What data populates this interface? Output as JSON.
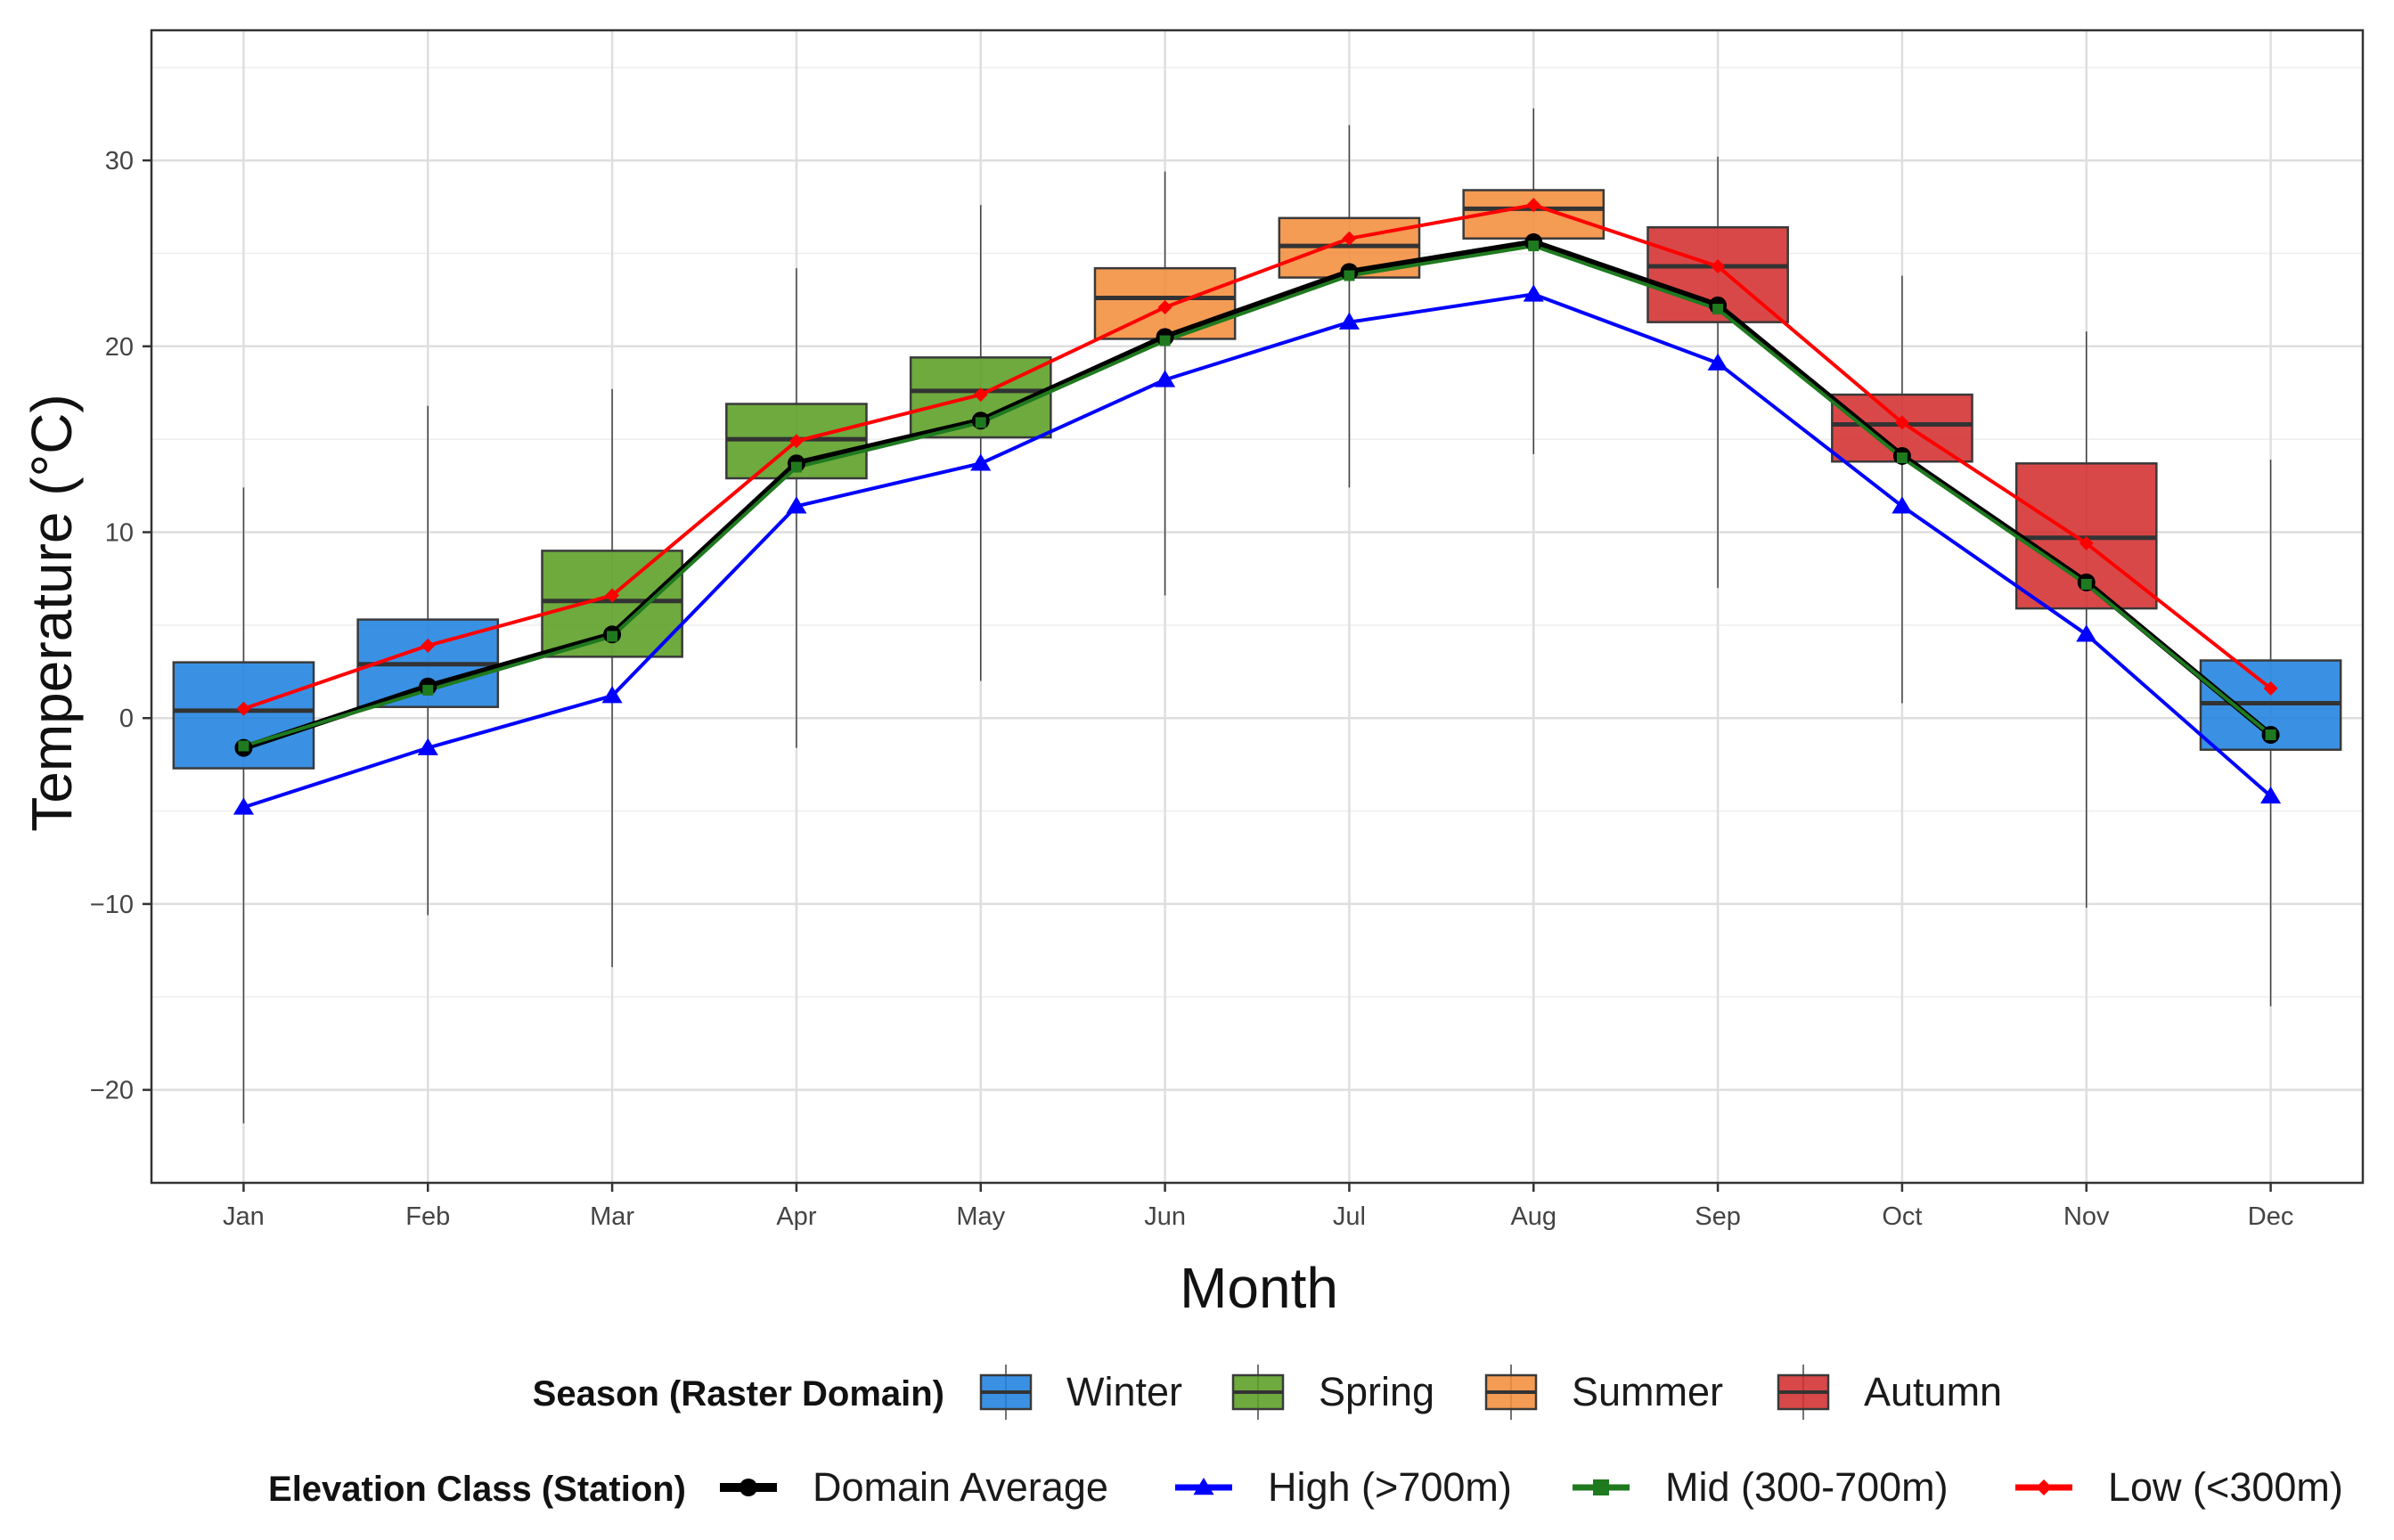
{
  "chart_data": {
    "type": "box+line",
    "xlabel": "Month",
    "ylabel": "Temperature (°C)",
    "ylim": [
      -25,
      37
    ],
    "yticks": [
      -20,
      -10,
      0,
      10,
      20,
      30
    ],
    "grid": true,
    "categories": [
      "Jan",
      "Feb",
      "Mar",
      "Apr",
      "May",
      "Jun",
      "Jul",
      "Aug",
      "Sep",
      "Oct",
      "Nov",
      "Dec"
    ],
    "boxes": [
      {
        "month": "Jan",
        "season": "Winter",
        "q1": -2.7,
        "median": 0.4,
        "q3": 3.0,
        "whisker_low": -21.8,
        "whisker_high": 12.4
      },
      {
        "month": "Feb",
        "season": "Winter",
        "q1": 0.6,
        "median": 2.9,
        "q3": 5.3,
        "whisker_low": -10.6,
        "whisker_high": 16.8
      },
      {
        "month": "Mar",
        "season": "Spring",
        "q1": 3.3,
        "median": 6.3,
        "q3": 9.0,
        "whisker_low": -13.4,
        "whisker_high": 17.7
      },
      {
        "month": "Apr",
        "season": "Spring",
        "q1": 12.9,
        "median": 15.0,
        "q3": 16.9,
        "whisker_low": -1.6,
        "whisker_high": 24.2
      },
      {
        "month": "May",
        "season": "Spring",
        "q1": 15.1,
        "median": 17.6,
        "q3": 19.4,
        "whisker_low": 2.0,
        "whisker_high": 27.6
      },
      {
        "month": "Jun",
        "season": "Summer",
        "q1": 20.4,
        "median": 22.6,
        "q3": 24.2,
        "whisker_low": 6.6,
        "whisker_high": 29.4
      },
      {
        "month": "Jul",
        "season": "Summer",
        "q1": 23.7,
        "median": 25.4,
        "q3": 26.9,
        "whisker_low": 12.4,
        "whisker_high": 31.9
      },
      {
        "month": "Aug",
        "season": "Summer",
        "q1": 25.8,
        "median": 27.4,
        "q3": 28.4,
        "whisker_low": 14.2,
        "whisker_high": 32.8
      },
      {
        "month": "Sep",
        "season": "Autumn",
        "q1": 21.3,
        "median": 24.3,
        "q3": 26.4,
        "whisker_low": 7.0,
        "whisker_high": 30.2
      },
      {
        "month": "Oct",
        "season": "Autumn",
        "q1": 13.8,
        "median": 15.8,
        "q3": 17.4,
        "whisker_low": 0.8,
        "whisker_high": 23.8
      },
      {
        "month": "Nov",
        "season": "Autumn",
        "q1": 5.9,
        "median": 9.7,
        "q3": 13.7,
        "whisker_low": -10.2,
        "whisker_high": 20.8
      },
      {
        "month": "Dec",
        "season": "Winter",
        "q1": -1.7,
        "median": 0.8,
        "q3": 3.1,
        "whisker_low": -15.5,
        "whisker_high": 13.9
      }
    ],
    "season_colors": {
      "Winter": "#1F82E0",
      "Spring": "#5A9E23",
      "Summer": "#F28D3C",
      "Autumn": "#D42F2F"
    },
    "series": [
      {
        "name": "Domain Average",
        "color": "#000000",
        "marker": "circle",
        "values": [
          -1.6,
          1.7,
          4.5,
          13.7,
          16.0,
          20.5,
          24.0,
          25.6,
          22.2,
          14.1,
          7.3,
          -0.9
        ]
      },
      {
        "name": "High (>700m)",
        "color": "#0000FF",
        "marker": "triangle",
        "values": [
          -4.8,
          -1.6,
          1.2,
          11.4,
          13.7,
          18.2,
          21.3,
          22.8,
          19.1,
          11.4,
          4.5,
          -4.2
        ]
      },
      {
        "name": "Mid (300-700m)",
        "color": "#1F7A1F",
        "marker": "square",
        "values": [
          -1.5,
          1.5,
          4.4,
          13.5,
          15.9,
          20.3,
          23.8,
          25.4,
          22.0,
          14.0,
          7.2,
          -0.9
        ]
      },
      {
        "name": "Low (<300m)",
        "color": "#FF0000",
        "marker": "diamond",
        "values": [
          0.5,
          3.9,
          6.6,
          14.9,
          17.4,
          22.1,
          25.8,
          27.6,
          24.3,
          15.9,
          9.4,
          1.6
        ]
      }
    ],
    "legend_season": {
      "title": "Season (Raster Domain)",
      "items": [
        "Winter",
        "Spring",
        "Summer",
        "Autumn"
      ]
    },
    "legend_elevation": {
      "title": "Elevation Class (Station)",
      "items": [
        "Domain Average",
        "High (>700m)",
        "Mid (300-700m)",
        "Low (<300m)"
      ]
    }
  }
}
